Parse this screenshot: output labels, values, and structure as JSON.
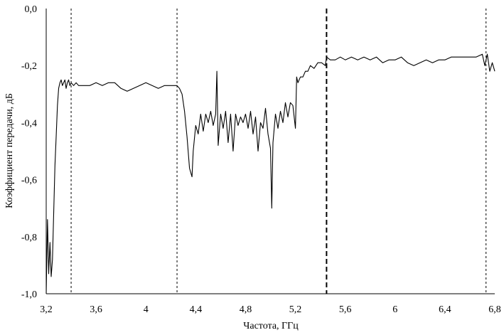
{
  "chart_data": {
    "type": "line",
    "xlabel": "Частота, ГГц",
    "ylabel": "Коэффициент передачи, дБ",
    "xlim": [
      3.2,
      6.8
    ],
    "ylim": [
      -1.0,
      0.0
    ],
    "x_ticks": [
      {
        "value": 3.2,
        "label": "3,2"
      },
      {
        "value": 3.6,
        "label": "3,6"
      },
      {
        "value": 4.0,
        "label": "4"
      },
      {
        "value": 4.4,
        "label": "4,4"
      },
      {
        "value": 4.8,
        "label": "4,8"
      },
      {
        "value": 5.2,
        "label": "5,2"
      },
      {
        "value": 5.6,
        "label": "5,6"
      },
      {
        "value": 6.0,
        "label": "6"
      },
      {
        "value": 6.4,
        "label": "6,4"
      },
      {
        "value": 6.8,
        "label": "6,8"
      }
    ],
    "y_ticks": [
      {
        "value": 0.0,
        "label": "0,0"
      },
      {
        "value": -0.2,
        "label": "-0,2"
      },
      {
        "value": -0.4,
        "label": "-0,4"
      },
      {
        "value": -0.6,
        "label": "-0,6"
      },
      {
        "value": -0.8,
        "label": "-0,8"
      },
      {
        "value": -1.0,
        "label": "-1,0"
      }
    ],
    "grid": false,
    "legend": "none",
    "series_color": "#000000",
    "vlines": [
      {
        "x": 3.4,
        "style": "dotted"
      },
      {
        "x": 4.25,
        "style": "dotted"
      },
      {
        "x": 5.45,
        "style": "dashed"
      },
      {
        "x": 6.73,
        "style": "dotted"
      }
    ],
    "series": [
      {
        "x": [
          3.2,
          3.21,
          3.22,
          3.23,
          3.24,
          3.25,
          3.26,
          3.27,
          3.28,
          3.29,
          3.3,
          3.31,
          3.32,
          3.33,
          3.34,
          3.35,
          3.36,
          3.37,
          3.38,
          3.39,
          3.4,
          3.42,
          3.44,
          3.46,
          3.5,
          3.55,
          3.6,
          3.65,
          3.7,
          3.75,
          3.8,
          3.85,
          3.9,
          3.95,
          4.0,
          4.05,
          4.1,
          4.15,
          4.2,
          4.25,
          4.27,
          4.29,
          4.31,
          4.33,
          4.35,
          4.37,
          4.38,
          4.4,
          4.42,
          4.44,
          4.46,
          4.48,
          4.5,
          4.52,
          4.54,
          4.56,
          4.57,
          4.58,
          4.6,
          4.62,
          4.64,
          4.66,
          4.68,
          4.7,
          4.72,
          4.74,
          4.76,
          4.78,
          4.8,
          4.82,
          4.84,
          4.86,
          4.88,
          4.9,
          4.92,
          4.94,
          4.96,
          4.98,
          5.0,
          5.01,
          5.02,
          5.04,
          5.06,
          5.08,
          5.1,
          5.12,
          5.14,
          5.16,
          5.18,
          5.2,
          5.21,
          5.22,
          5.24,
          5.26,
          5.28,
          5.3,
          5.32,
          5.35,
          5.38,
          5.41,
          5.44,
          5.45,
          5.48,
          5.52,
          5.56,
          5.6,
          5.65,
          5.7,
          5.75,
          5.8,
          5.85,
          5.9,
          5.95,
          6.0,
          6.05,
          6.1,
          6.15,
          6.2,
          6.25,
          6.3,
          6.35,
          6.4,
          6.45,
          6.5,
          6.55,
          6.6,
          6.65,
          6.7,
          6.72,
          6.74,
          6.76,
          6.78,
          6.8
        ],
        "y": [
          -1.0,
          -0.74,
          -0.93,
          -0.82,
          -0.94,
          -0.88,
          -0.72,
          -0.55,
          -0.45,
          -0.34,
          -0.28,
          -0.26,
          -0.25,
          -0.27,
          -0.26,
          -0.25,
          -0.28,
          -0.26,
          -0.25,
          -0.27,
          -0.26,
          -0.27,
          -0.26,
          -0.27,
          -0.27,
          -0.27,
          -0.26,
          -0.27,
          -0.26,
          -0.26,
          -0.28,
          -0.29,
          -0.28,
          -0.27,
          -0.26,
          -0.27,
          -0.28,
          -0.27,
          -0.27,
          -0.27,
          -0.28,
          -0.3,
          -0.36,
          -0.45,
          -0.56,
          -0.59,
          -0.5,
          -0.41,
          -0.44,
          -0.37,
          -0.43,
          -0.37,
          -0.4,
          -0.36,
          -0.41,
          -0.37,
          -0.22,
          -0.48,
          -0.37,
          -0.42,
          -0.36,
          -0.47,
          -0.37,
          -0.5,
          -0.37,
          -0.41,
          -0.38,
          -0.4,
          -0.37,
          -0.42,
          -0.36,
          -0.44,
          -0.38,
          -0.5,
          -0.4,
          -0.42,
          -0.35,
          -0.44,
          -0.49,
          -0.7,
          -0.47,
          -0.37,
          -0.42,
          -0.36,
          -0.4,
          -0.33,
          -0.38,
          -0.33,
          -0.34,
          -0.42,
          -0.24,
          -0.26,
          -0.24,
          -0.24,
          -0.22,
          -0.22,
          -0.2,
          -0.21,
          -0.19,
          -0.19,
          -0.2,
          -0.17,
          -0.18,
          -0.18,
          -0.17,
          -0.18,
          -0.17,
          -0.18,
          -0.17,
          -0.18,
          -0.17,
          -0.19,
          -0.18,
          -0.18,
          -0.17,
          -0.19,
          -0.2,
          -0.19,
          -0.18,
          -0.19,
          -0.18,
          -0.18,
          -0.17,
          -0.17,
          -0.17,
          -0.17,
          -0.17,
          -0.16,
          -0.2,
          -0.16,
          -0.22,
          -0.19,
          -0.22
        ]
      }
    ]
  }
}
